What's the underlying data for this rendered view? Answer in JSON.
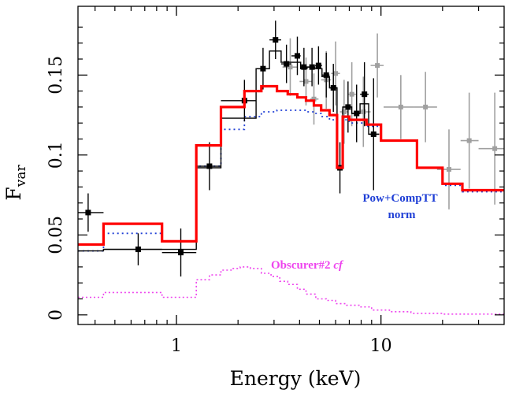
{
  "chart_data": {
    "type": "line",
    "xlabel": "Energy (keV)",
    "ylabel_main": "F",
    "ylabel_sub": "var",
    "xscale": "log",
    "xlim": [
      0.33,
      40
    ],
    "ylim": [
      -0.006,
      0.193
    ],
    "xticks": [
      {
        "value": 1,
        "label": "1"
      },
      {
        "value": 10,
        "label": "10"
      }
    ],
    "yticks": [
      {
        "value": 0,
        "label": "0"
      },
      {
        "value": 0.05,
        "label": "0.05"
      },
      {
        "value": 0.1,
        "label": "0.1"
      },
      {
        "value": 0.15,
        "label": "0.15"
      }
    ],
    "annotations": [
      {
        "id": "pow",
        "lines": [
          "Pow+CompTT",
          "norm"
        ],
        "color": "#1f3fd6"
      },
      {
        "id": "obs",
        "text": "Obscurer#2 ",
        "italic": "cf",
        "color": "#ee44ee"
      }
    ],
    "series": [
      {
        "id": "black_data",
        "kind": "step_points",
        "color": "#000000",
        "x": [
          0.37,
          0.65,
          1.05,
          1.45,
          2.15,
          2.65,
          3.05,
          3.45,
          3.9,
          4.2,
          4.6,
          4.95,
          5.4,
          5.85,
          6.3,
          6.9,
          7.6,
          8.3,
          9.2
        ],
        "y": [
          0.064,
          0.041,
          0.039,
          0.093,
          0.134,
          0.154,
          0.172,
          0.157,
          0.162,
          0.155,
          0.155,
          0.156,
          0.15,
          0.142,
          0.092,
          0.13,
          0.126,
          0.138,
          0.113
        ],
        "xerr": [
          [
            0.33,
            0.44
          ],
          [
            0.44,
            0.85
          ],
          [
            0.85,
            1.25
          ],
          [
            1.25,
            1.65
          ],
          [
            1.65,
            2.45
          ],
          [
            2.45,
            2.85
          ],
          [
            2.85,
            3.25
          ],
          [
            3.25,
            3.65
          ],
          [
            3.65,
            4.05
          ],
          [
            4.05,
            4.35
          ],
          [
            4.35,
            4.75
          ],
          [
            4.75,
            5.15
          ],
          [
            5.15,
            5.6
          ],
          [
            5.6,
            6.1
          ],
          [
            6.1,
            6.5
          ],
          [
            6.5,
            7.2
          ],
          [
            7.2,
            7.9
          ],
          [
            7.9,
            8.7
          ],
          [
            8.7,
            9.8
          ]
        ],
        "yerr": [
          0.012,
          0.01,
          0.015,
          0.015,
          0.013,
          0.013,
          0.012,
          0.012,
          0.012,
          0.012,
          0.012,
          0.012,
          0.014,
          0.015,
          0.016,
          0.016,
          0.018,
          0.02,
          0.035
        ]
      },
      {
        "id": "gray_data",
        "kind": "points",
        "color": "#a0a0a0",
        "x": [
          3.6,
          4.3,
          4.7,
          5.4,
          6.0,
          6.6,
          7.2,
          8.2,
          9.6,
          12.5,
          16.5,
          21.5,
          27.0,
          36.0
        ],
        "y": [
          0.155,
          0.146,
          0.135,
          0.147,
          0.151,
          0.127,
          0.138,
          0.127,
          0.156,
          0.13,
          0.13,
          0.091,
          0.109,
          0.104
        ],
        "xerr": [
          [
            3.3,
            3.9
          ],
          [
            4.0,
            4.6
          ],
          [
            4.5,
            4.95
          ],
          [
            5.1,
            5.7
          ],
          [
            5.7,
            6.3
          ],
          [
            6.3,
            6.9
          ],
          [
            6.9,
            7.6
          ],
          [
            7.6,
            8.9
          ],
          [
            8.9,
            10.3
          ],
          [
            10.3,
            14.5
          ],
          [
            14.5,
            18.8
          ],
          [
            18.8,
            24.5
          ],
          [
            24.5,
            30.0
          ],
          [
            30.0,
            40.0
          ]
        ],
        "yerr": [
          0.018,
          0.015,
          0.016,
          0.018,
          0.02,
          0.02,
          0.02,
          0.022,
          0.02,
          0.02,
          0.022,
          0.025,
          0.03,
          0.035
        ]
      },
      {
        "id": "red_model",
        "kind": "step",
        "color": "#ff0000",
        "edges": [
          0.33,
          0.44,
          0.85,
          1.25,
          1.65,
          2.15,
          2.6,
          3.1,
          3.5,
          3.9,
          4.3,
          4.7,
          5.1,
          5.6,
          6.1,
          6.5,
          7.0,
          8.5,
          10.0,
          15.0,
          20.0,
          25.0,
          40.0
        ],
        "values": [
          0.044,
          0.057,
          0.046,
          0.106,
          0.13,
          0.14,
          0.143,
          0.14,
          0.138,
          0.136,
          0.134,
          0.131,
          0.128,
          0.125,
          0.092,
          0.124,
          0.122,
          0.119,
          0.109,
          0.092,
          0.082,
          0.078
        ]
      },
      {
        "id": "blue_model",
        "kind": "step",
        "color": "#1f3fd6",
        "dash": "2,4",
        "edges": [
          0.33,
          0.44,
          0.85,
          1.25,
          1.65,
          2.15,
          2.6,
          3.1,
          3.5,
          3.9,
          4.3,
          4.7,
          5.1,
          5.6,
          6.1,
          6.5,
          7.0,
          8.5,
          10.0,
          15.0,
          20.0,
          25.0,
          40.0
        ],
        "values": [
          0.04,
          0.051,
          0.046,
          0.093,
          0.116,
          0.124,
          0.127,
          0.128,
          0.128,
          0.128,
          0.127,
          0.126,
          0.124,
          0.122,
          0.092,
          0.122,
          0.12,
          0.118,
          0.109,
          0.092,
          0.081,
          0.077
        ]
      },
      {
        "id": "magenta_model",
        "kind": "step",
        "color": "#ee44ee",
        "dash": "2,3",
        "edges": [
          0.33,
          0.44,
          0.85,
          1.25,
          1.45,
          1.65,
          1.85,
          2.05,
          2.3,
          2.6,
          2.9,
          3.2,
          3.5,
          3.9,
          4.3,
          4.8,
          5.4,
          6.0,
          6.8,
          7.8,
          9.0,
          11.0,
          14.0,
          20.0,
          40.0
        ],
        "values": [
          0.011,
          0.014,
          0.011,
          0.022,
          0.025,
          0.028,
          0.029,
          0.03,
          0.029,
          0.026,
          0.024,
          0.021,
          0.019,
          0.016,
          0.013,
          0.01,
          0.009,
          0.007,
          0.006,
          0.005,
          0.003,
          0.002,
          0.001,
          0.0005
        ]
      },
      {
        "id": "black_hist",
        "kind": "step",
        "color": "#000000",
        "edges": [
          0.33,
          0.44,
          0.85,
          1.25,
          1.65,
          2.45,
          2.85,
          3.25,
          3.65,
          4.05,
          4.35,
          4.75,
          5.15,
          5.6,
          6.1,
          6.5,
          7.2,
          7.9,
          8.7,
          9.8
        ],
        "values": [
          0.04,
          0.041,
          0.041,
          0.092,
          0.123,
          0.154,
          0.165,
          0.158,
          0.158,
          0.154,
          0.155,
          0.154,
          0.149,
          0.142,
          0.092,
          0.13,
          0.126,
          0.132,
          0.113
        ]
      }
    ]
  }
}
